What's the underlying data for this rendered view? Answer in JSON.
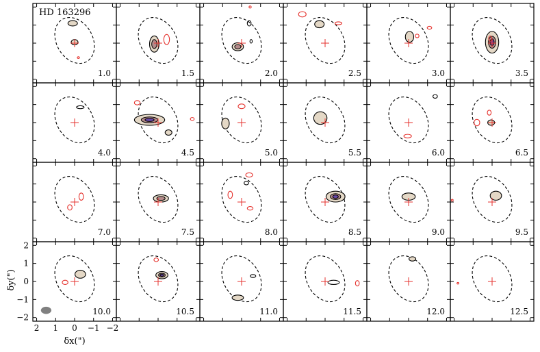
{
  "chart_data": {
    "type": "channel-map",
    "title": "HD 163296",
    "xlabel": "δx(\")",
    "ylabel": "δy(\")",
    "x_ticks": [
      "2",
      "1",
      "0",
      "−1",
      "−2"
    ],
    "y_ticks": [
      "2",
      "1",
      "0",
      "−1",
      "−2"
    ],
    "x_range": [
      2.2,
      -2.2
    ],
    "y_range": [
      -2.2,
      2.2
    ],
    "beam": {
      "x": 1.5,
      "y": -1.6,
      "major": 0.55,
      "minor": 0.4,
      "pa_deg": 0
    },
    "disk_ellipse": {
      "center_x": 0.0,
      "center_y": 0.15,
      "major": 1.35,
      "minor": 0.95,
      "pa_deg": -30
    },
    "star": {
      "x": 0.0,
      "y": 0.0
    },
    "colors": {
      "line": "#000000",
      "negative": "#e5322d",
      "low": "#e4d8c6",
      "mid": "#b48a8a",
      "high": "#6a49a8",
      "marker": "#e5322d"
    },
    "velocities": [
      "1.0",
      "1.5",
      "2.0",
      "2.5",
      "3.0",
      "3.5",
      "4.0",
      "4.5",
      "5.0",
      "5.5",
      "6.0",
      "6.5",
      "7.0",
      "7.5",
      "8.0",
      "8.5",
      "9.0",
      "9.5",
      "10.0",
      "10.5",
      "11.0",
      "11.5",
      "12.0",
      "12.5"
    ],
    "channels": [
      {
        "v": "1.0",
        "pos": [
          {
            "x": 0.1,
            "y": 1.1,
            "a": 0.25,
            "b": 0.15,
            "lvl": 1
          },
          {
            "x": 0.0,
            "y": 0.05,
            "a": 0.18,
            "b": 0.15,
            "lvl": 1
          }
        ],
        "neg": [
          {
            "x": -0.2,
            "y": -0.8,
            "a": 0.06,
            "b": 0.05
          }
        ]
      },
      {
        "v": "1.5",
        "pos": [
          {
            "x": 0.2,
            "y": -0.05,
            "a": 0.25,
            "b": 0.45,
            "lvl": 2
          }
        ],
        "neg": [
          {
            "x": -0.45,
            "y": 0.2,
            "a": 0.15,
            "b": 0.28
          }
        ]
      },
      {
        "v": "2.0",
        "pos": [
          {
            "x": 0.2,
            "y": -0.2,
            "a": 0.3,
            "b": 0.22,
            "lvl": 2
          },
          {
            "x": -0.4,
            "y": 1.1,
            "a": 0.1,
            "b": 0.15,
            "lvl": 0
          },
          {
            "x": -0.5,
            "y": 0.1,
            "a": 0.06,
            "b": 0.1,
            "lvl": 0
          }
        ],
        "neg": [
          {
            "x": -0.45,
            "y": 2.0,
            "a": 0.06,
            "b": 0.06
          }
        ]
      },
      {
        "v": "2.5",
        "pos": [
          {
            "x": 0.3,
            "y": 1.05,
            "a": 0.25,
            "b": 0.2,
            "lvl": 1
          }
        ],
        "neg": [
          {
            "x": 1.2,
            "y": 1.6,
            "a": 0.2,
            "b": 0.15
          },
          {
            "x": -0.7,
            "y": 1.1,
            "a": 0.18,
            "b": 0.08
          }
        ]
      },
      {
        "v": "3.0",
        "pos": [
          {
            "x": -0.05,
            "y": 0.35,
            "a": 0.22,
            "b": 0.3,
            "lvl": 1
          }
        ],
        "neg": [
          {
            "x": -0.45,
            "y": 0.4,
            "a": 0.1,
            "b": 0.1
          },
          {
            "x": -1.1,
            "y": 0.85,
            "a": 0.12,
            "b": 0.08
          }
        ]
      },
      {
        "v": "3.5",
        "pos": [
          {
            "x": 0.0,
            "y": 0.05,
            "a": 0.35,
            "b": 0.6,
            "lvl": 3
          }
        ],
        "neg": [
          {
            "x": 0.1,
            "y": 0.25,
            "a": 0.08,
            "b": 0.15
          }
        ]
      },
      {
        "v": "4.0",
        "pos": [
          {
            "x": -0.3,
            "y": 0.85,
            "a": 0.2,
            "b": 0.08,
            "lvl": 0
          }
        ],
        "neg": []
      },
      {
        "v": "4.5",
        "pos": [
          {
            "x": 0.45,
            "y": 0.15,
            "a": 0.8,
            "b": 0.3,
            "lvl": 3
          },
          {
            "x": -0.55,
            "y": -0.55,
            "a": 0.18,
            "b": 0.15,
            "lvl": 1
          }
        ],
        "neg": [
          {
            "x": 1.1,
            "y": 1.1,
            "a": 0.15,
            "b": 0.12
          },
          {
            "x": -1.8,
            "y": 0.2,
            "a": 0.1,
            "b": 0.08
          }
        ]
      },
      {
        "v": "5.0",
        "pos": [
          {
            "x": 0.85,
            "y": -0.05,
            "a": 0.2,
            "b": 0.3,
            "lvl": 1
          }
        ],
        "neg": [
          {
            "x": 0.0,
            "y": 0.9,
            "a": 0.18,
            "b": 0.13
          }
        ]
      },
      {
        "v": "5.5",
        "pos": [
          {
            "x": 0.25,
            "y": 0.25,
            "a": 0.35,
            "b": 0.35,
            "lvl": 1
          }
        ],
        "neg": []
      },
      {
        "v": "6.0",
        "pos": [
          {
            "x": -1.4,
            "y": 1.45,
            "a": 0.12,
            "b": 0.1,
            "lvl": 0
          }
        ],
        "neg": [
          {
            "x": 0.05,
            "y": -0.75,
            "a": 0.2,
            "b": 0.1
          }
        ]
      },
      {
        "v": "6.5",
        "pos": [
          {
            "x": 0.05,
            "y": 0.0,
            "a": 0.18,
            "b": 0.15,
            "lvl": 1
          }
        ],
        "neg": [
          {
            "x": 0.8,
            "y": 0.0,
            "a": 0.15,
            "b": 0.18
          },
          {
            "x": 0.15,
            "y": 0.55,
            "a": 0.1,
            "b": 0.14
          }
        ]
      },
      {
        "v": "7.0",
        "pos": [],
        "neg": [
          {
            "x": -0.35,
            "y": 0.3,
            "a": 0.12,
            "b": 0.2
          },
          {
            "x": 0.25,
            "y": -0.3,
            "a": 0.12,
            "b": 0.15
          }
        ]
      },
      {
        "v": "7.5",
        "pos": [
          {
            "x": -0.15,
            "y": 0.2,
            "a": 0.4,
            "b": 0.2,
            "lvl": 2
          }
        ],
        "neg": []
      },
      {
        "v": "8.0",
        "pos": [
          {
            "x": -0.25,
            "y": 1.05,
            "a": 0.12,
            "b": 0.1,
            "lvl": 0
          }
        ],
        "neg": [
          {
            "x": -0.4,
            "y": 1.5,
            "a": 0.18,
            "b": 0.12
          },
          {
            "x": 0.6,
            "y": 0.4,
            "a": 0.12,
            "b": 0.2
          },
          {
            "x": -0.45,
            "y": -0.35,
            "a": 0.15,
            "b": 0.1
          }
        ]
      },
      {
        "v": "8.5",
        "pos": [
          {
            "x": -0.55,
            "y": 0.3,
            "a": 0.5,
            "b": 0.3,
            "lvl": 3
          }
        ],
        "neg": []
      },
      {
        "v": "9.0",
        "pos": [
          {
            "x": 0.0,
            "y": 0.3,
            "a": 0.35,
            "b": 0.2,
            "lvl": 1
          }
        ],
        "neg": []
      },
      {
        "v": "9.5",
        "pos": [
          {
            "x": -0.2,
            "y": 0.35,
            "a": 0.3,
            "b": 0.25,
            "lvl": 1
          }
        ],
        "neg": [
          {
            "x": 2.1,
            "y": 0.1,
            "a": 0.05,
            "b": 0.05
          }
        ]
      },
      {
        "v": "10.0",
        "pos": [
          {
            "x": -0.3,
            "y": 0.4,
            "a": 0.28,
            "b": 0.22,
            "lvl": 1
          }
        ],
        "neg": [
          {
            "x": 0.5,
            "y": -0.05,
            "a": 0.15,
            "b": 0.12
          }
        ]
      },
      {
        "v": "10.5",
        "pos": [
          {
            "x": -0.2,
            "y": 0.35,
            "a": 0.32,
            "b": 0.2,
            "lvl": 3
          }
        ],
        "neg": [
          {
            "x": 0.1,
            "y": 1.2,
            "a": 0.12,
            "b": 0.1
          }
        ]
      },
      {
        "v": "11.0",
        "pos": [
          {
            "x": 0.2,
            "y": -0.9,
            "a": 0.3,
            "b": 0.15,
            "lvl": 1
          },
          {
            "x": -0.6,
            "y": 0.3,
            "a": 0.15,
            "b": 0.08,
            "lvl": 0
          }
        ],
        "neg": []
      },
      {
        "v": "11.5",
        "pos": [
          {
            "x": -0.45,
            "y": -0.05,
            "a": 0.3,
            "b": 0.12,
            "lvl": 0
          }
        ],
        "neg": [
          {
            "x": -1.7,
            "y": -0.1,
            "a": 0.1,
            "b": 0.15
          }
        ]
      },
      {
        "v": "12.0",
        "pos": [
          {
            "x": -0.2,
            "y": 1.25,
            "a": 0.18,
            "b": 0.12,
            "lvl": 1
          }
        ],
        "neg": []
      },
      {
        "v": "12.5",
        "pos": [],
        "neg": [
          {
            "x": 1.8,
            "y": -0.1,
            "a": 0.05,
            "b": 0.03
          }
        ]
      }
    ]
  }
}
